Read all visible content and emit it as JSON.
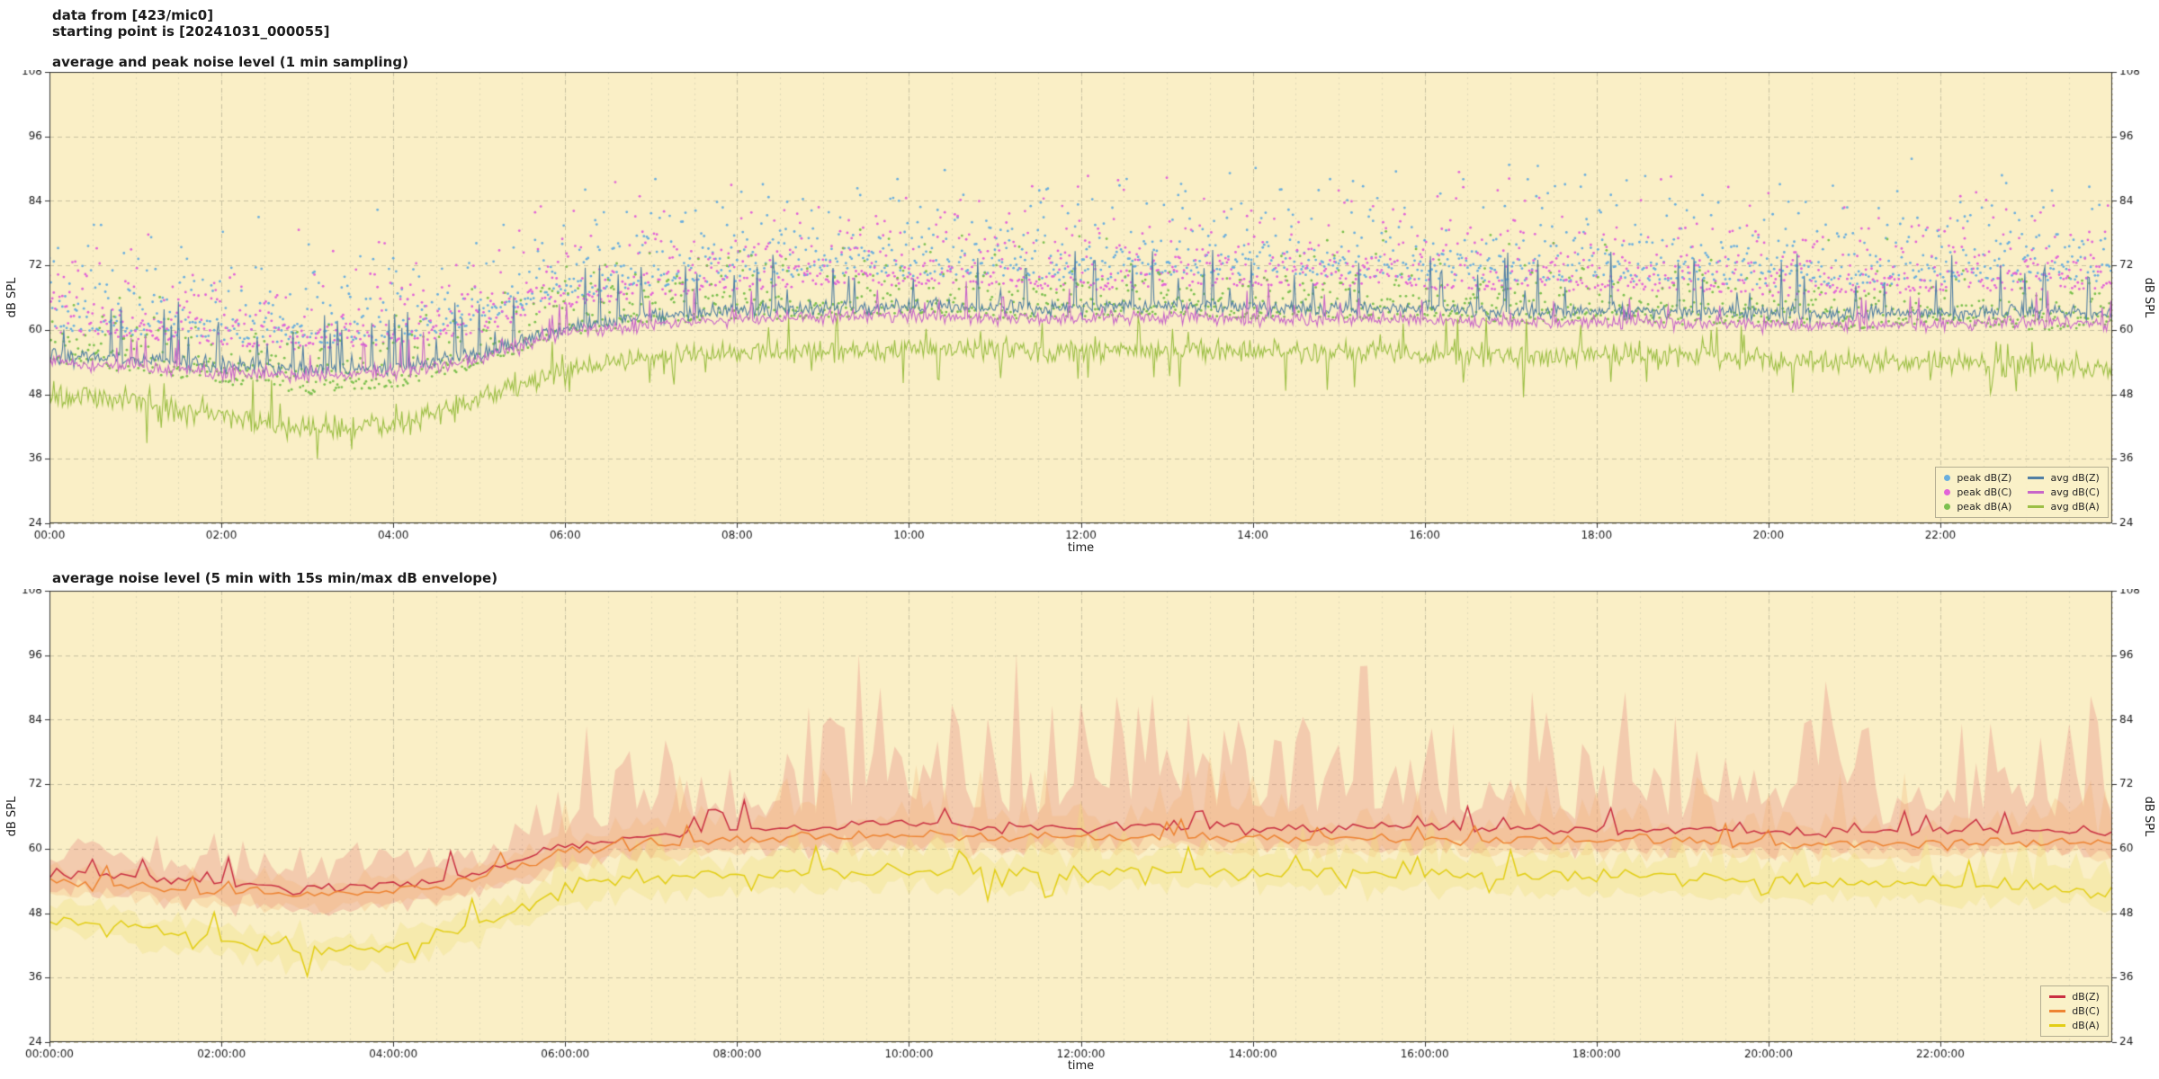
{
  "header": {
    "line1": "data from [423/mic0]",
    "line2": "starting point is [20241031_000055]"
  },
  "colors": {
    "figure_bg": "#ffffff",
    "plot_bg": "#faefc6",
    "grid_minor": "#e0dab8",
    "grid_major": "#c6c0a0",
    "axis": "#333333",
    "text": "#1a1a1a"
  },
  "chart_data": [
    {
      "type": "line",
      "title": "average and peak noise level (1 min sampling)",
      "xlabel": "time",
      "ylabel": "dB SPL",
      "ylabel_right": "dB SPL",
      "ylim": [
        24,
        108
      ],
      "yticks": [
        24,
        36,
        48,
        60,
        72,
        84,
        96,
        108
      ],
      "xlim_hours": [
        0,
        24
      ],
      "xticks_hours": [
        0,
        2,
        4,
        6,
        8,
        10,
        12,
        14,
        16,
        18,
        20,
        22
      ],
      "xtick_labels": [
        "00:00",
        "02:00",
        "04:00",
        "06:00",
        "08:00",
        "10:00",
        "12:00",
        "14:00",
        "16:00",
        "18:00",
        "20:00",
        "22:00"
      ],
      "x_minor_step_hours": 0.5,
      "grid": true,
      "legend_position": "lower right",
      "sample_step_min": 1,
      "x_keypoints_hours": [
        0,
        1,
        2,
        3,
        4,
        5,
        6,
        7,
        8,
        9,
        10,
        11,
        12,
        13,
        14,
        15,
        16,
        17,
        18,
        19,
        20,
        21,
        22,
        23,
        24
      ],
      "series": [
        {
          "name": "peak dB(Z)",
          "style": "scatter",
          "color": "#69aede",
          "values": [
            63,
            62,
            61,
            60,
            61,
            64,
            69,
            71,
            72,
            73,
            73,
            73,
            72,
            73,
            73,
            73,
            72,
            72,
            72,
            72,
            71,
            71,
            72,
            72,
            72
          ],
          "spread_db": 6
        },
        {
          "name": "peak dB(C)",
          "style": "scatter",
          "color": "#e263d8",
          "values": [
            62,
            61,
            60,
            59,
            60,
            62,
            67,
            69,
            70,
            71,
            71,
            71,
            70,
            71,
            71,
            71,
            70,
            70,
            70,
            70,
            69,
            69,
            70,
            70,
            70
          ],
          "spread_db": 5.5
        },
        {
          "name": "peak dB(A)",
          "style": "scatter",
          "color": "#7cc04f",
          "values": [
            56,
            54,
            52,
            50,
            51,
            55,
            61,
            63,
            64,
            64,
            65,
            64,
            64,
            65,
            64,
            64,
            64,
            63,
            64,
            63,
            63,
            62,
            63,
            62,
            62
          ],
          "spread_db": 4
        },
        {
          "name": "avg dB(Z)",
          "style": "line",
          "color": "#517fa4",
          "values": [
            55.5,
            54.5,
            53.5,
            52.5,
            53,
            55.5,
            60.5,
            62.5,
            63.5,
            64,
            64.5,
            64,
            64,
            64.5,
            64,
            64,
            64,
            63.5,
            63.5,
            63.5,
            63,
            63,
            63,
            63.5,
            63
          ],
          "noise_db": 1.6,
          "spike_rate": 0.06,
          "spike_db": 11,
          "spike_dir": 1
        },
        {
          "name": "avg dB(C)",
          "style": "line",
          "color": "#c866c9",
          "values": [
            54,
            53,
            52,
            51.5,
            52,
            54.5,
            59.5,
            61,
            62,
            62.5,
            62.5,
            62,
            62,
            62.5,
            62,
            62,
            62,
            61.5,
            61.5,
            61.5,
            61,
            61,
            61,
            61.5,
            61
          ],
          "noise_db": 1.4,
          "spike_rate": 0.04,
          "spike_db": 6,
          "spike_dir": 1
        },
        {
          "name": "avg dB(A)",
          "style": "line",
          "color": "#9cbf45",
          "values": [
            48.5,
            46.5,
            44,
            41.5,
            42.5,
            47,
            53,
            55,
            55.5,
            56,
            56.5,
            56,
            56,
            56.5,
            56,
            56,
            55.5,
            55,
            55.5,
            55,
            54.5,
            54,
            54,
            53.5,
            52.5
          ],
          "noise_db": 2.4,
          "spike_rate": 0.06,
          "spike_db": 7,
          "spike_dir": 0
        }
      ]
    },
    {
      "type": "line",
      "title": "average noise level (5 min with 15s min/max dB envelope)",
      "xlabel": "time",
      "ylabel": "dB SPL",
      "ylabel_right": "dB SPL",
      "ylim": [
        24,
        108
      ],
      "yticks": [
        24,
        36,
        48,
        60,
        72,
        84,
        96,
        108
      ],
      "xlim_hours": [
        0,
        24
      ],
      "xticks_hours": [
        0,
        2,
        4,
        6,
        8,
        10,
        12,
        14,
        16,
        18,
        20,
        22
      ],
      "xtick_labels": [
        "00:00:00",
        "02:00:00",
        "04:00:00",
        "06:00:00",
        "08:00:00",
        "10:00:00",
        "12:00:00",
        "14:00:00",
        "16:00:00",
        "18:00:00",
        "20:00:00",
        "22:00:00"
      ],
      "x_minor_step_hours": 0.5,
      "grid": true,
      "legend_position": "lower right",
      "sample_step_min": 5,
      "x_keypoints_hours": [
        0,
        1,
        2,
        3,
        4,
        5,
        6,
        7,
        8,
        9,
        10,
        11,
        12,
        13,
        14,
        15,
        16,
        17,
        18,
        19,
        20,
        21,
        22,
        23,
        24
      ],
      "series": [
        {
          "name": "dB(Z)",
          "style": "line",
          "color": "#c92f42",
          "values": [
            55.5,
            54.5,
            53.5,
            52.5,
            53,
            55.5,
            60.5,
            62.5,
            63.5,
            64,
            64.5,
            64,
            64,
            64.5,
            64,
            64,
            64,
            63.5,
            63.5,
            63.5,
            63,
            63,
            63,
            63.5,
            63
          ],
          "noise_db": 1.2,
          "spike_rate": 0.08,
          "spike_db": 5,
          "spike_dir": 1,
          "envelope": {
            "color": "rgba(230,120,120,0.30)",
            "up_base": 2,
            "up_scale": 9,
            "down_base": 2,
            "down_scale": 3
          }
        },
        {
          "name": "dB(C)",
          "style": "line",
          "color": "#ee8433",
          "values": [
            54,
            53,
            52,
            51.5,
            52,
            54.5,
            59.5,
            61,
            62,
            62.5,
            62.5,
            62,
            62,
            62.5,
            62,
            62,
            62,
            61.5,
            61.5,
            61.5,
            61,
            61,
            61,
            61.5,
            61
          ],
          "noise_db": 1.1,
          "spike_rate": 0.05,
          "spike_db": 4,
          "spike_dir": 1,
          "envelope": {
            "color": "rgba(245,175,110,0.28)",
            "up_base": 1.5,
            "up_scale": 3.5,
            "down_base": 1.5,
            "down_scale": 2
          }
        },
        {
          "name": "dB(A)",
          "style": "line",
          "color": "#e2ce15",
          "values": [
            47.5,
            45.5,
            43,
            40.5,
            41.5,
            46,
            52.5,
            54.5,
            55,
            55.5,
            56,
            55.5,
            55.5,
            56.5,
            55.5,
            55.5,
            55,
            54.5,
            55,
            54.5,
            54,
            53.5,
            53.5,
            53,
            51.5
          ],
          "noise_db": 1.6,
          "spike_rate": 0.05,
          "spike_db": 5,
          "spike_dir": 0,
          "envelope": {
            "color": "rgba(240,225,120,0.32)",
            "up_base": 1.5,
            "up_scale": 3.5,
            "down_base": 1.5,
            "down_scale": 2.5
          }
        }
      ]
    }
  ]
}
